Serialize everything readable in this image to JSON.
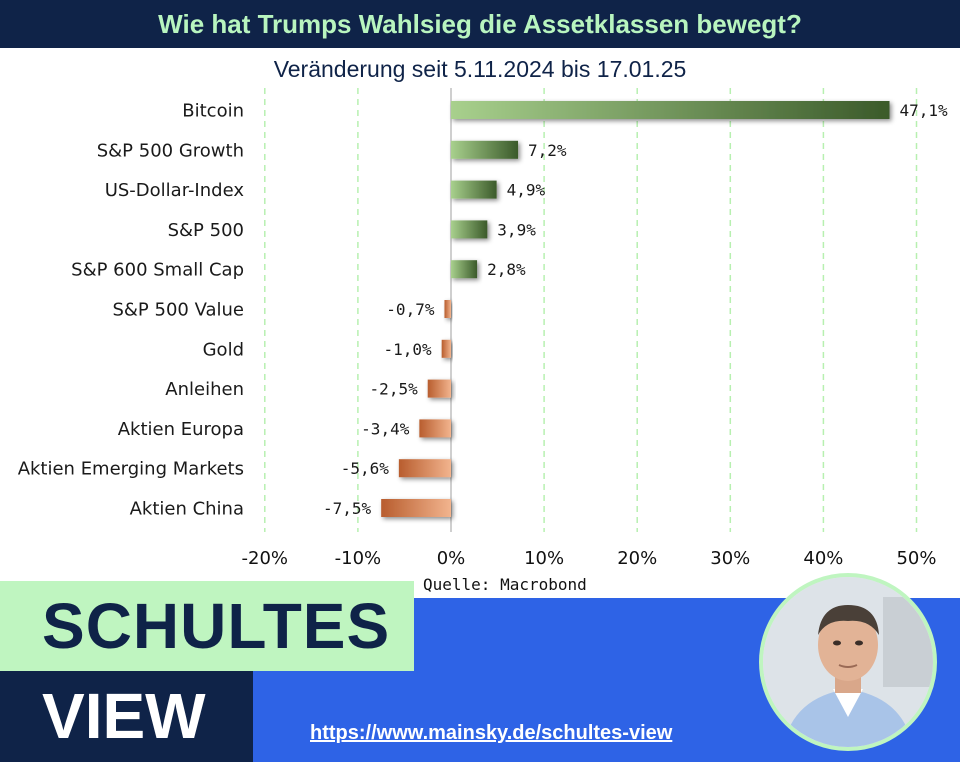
{
  "header": {
    "title": "Wie hat Trumps Wahlsieg die Assetklassen bewegt?",
    "subtitle": "Veränderung seit 5.11.2024 bis 17.01.25"
  },
  "chart_data": {
    "type": "bar",
    "orientation": "horizontal",
    "categories": [
      "Bitcoin",
      "S&P 500 Growth",
      "US-Dollar-Index",
      "S&P 500",
      "S&P 600 Small Cap",
      "S&P 500 Value",
      "Gold",
      "Anleihen",
      "Aktien Europa",
      "Aktien Emerging Markets",
      "Aktien China"
    ],
    "values": [
      47.1,
      7.2,
      4.9,
      3.9,
      2.8,
      -0.7,
      -1.0,
      -2.5,
      -3.4,
      -5.6,
      -7.5
    ],
    "value_labels": [
      "47,1%",
      "7,2%",
      "4,9%",
      "3,9%",
      "2,8%",
      "-0,7%",
      "-1,0%",
      "-2,5%",
      "-3,4%",
      "-5,6%",
      "-7,5%"
    ],
    "x_ticks": [
      -20,
      -10,
      0,
      10,
      20,
      30,
      40,
      50
    ],
    "x_tick_labels": [
      "-20%",
      "-10%",
      "0%",
      "10%",
      "20%",
      "30%",
      "40%",
      "50%"
    ],
    "xlim": [
      -20,
      50
    ],
    "grid": "vertical dashed",
    "colors": {
      "positive": "#6aa84f",
      "positive_dark": "#3b5a2a",
      "negative": "#e89a6e",
      "negative_dark": "#b85d2e",
      "grid": "#b7f0b0"
    }
  },
  "source": "Quelle: Macrobond",
  "branding": {
    "line1": "SCHULTES",
    "line2": "VIEW",
    "url": "https://www.mainsky.de/schultes-view",
    "colors": {
      "navy": "#0f2348",
      "mint": "#bff5c0",
      "blue": "#2e63e6"
    }
  },
  "avatar": {
    "icon": "person-portrait"
  }
}
